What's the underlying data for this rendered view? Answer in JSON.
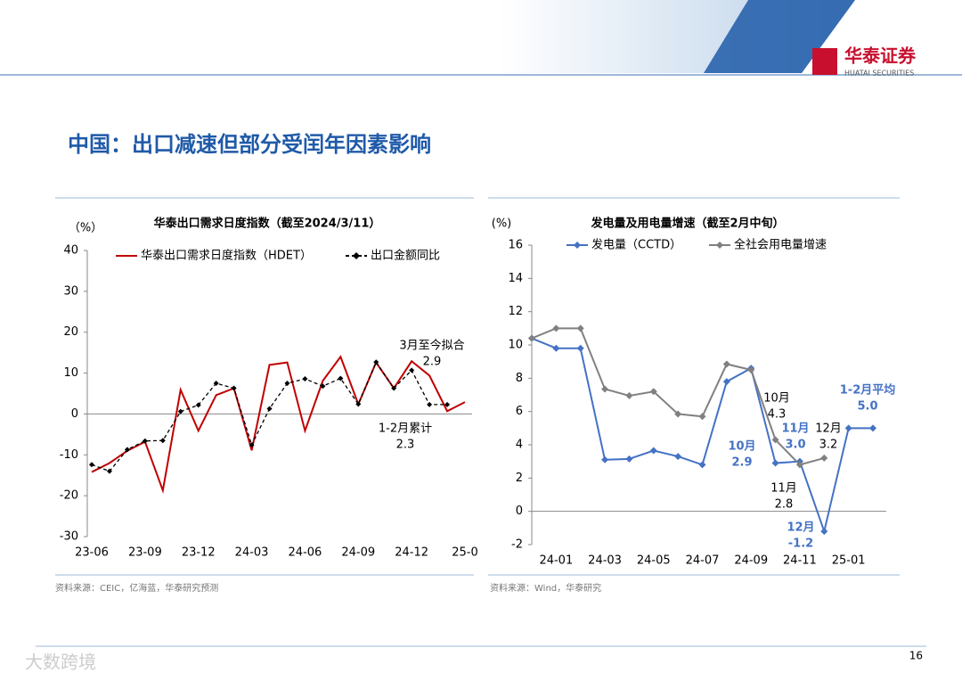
{
  "header": {
    "logo": "华泰证券",
    "logo_en": "HUATAI SECURITIES"
  },
  "title": "中国：出口减速但部分受闰年因素影响",
  "chart_data": [
    {
      "type": "line",
      "title": "华泰出口需求日度指数（截至2024/3/11）",
      "y_label": "（%）",
      "categories": [
        "23-06",
        null,
        null,
        "23-09",
        null,
        null,
        "23-12",
        null,
        null,
        "24-03",
        null,
        null,
        "24-06",
        null,
        null,
        "24-09",
        null,
        null,
        "24-12",
        null,
        null,
        "25-0"
      ],
      "series": [
        {
          "name": "华泰出口需求日度指数（HDET）",
          "color": "#c00000",
          "dash": false,
          "marker": "none",
          "values": [
            -14.2,
            -12,
            -9,
            -6.8,
            -18.7,
            5.9,
            -4.1,
            4.6,
            6.3,
            -8.9,
            12,
            12.6,
            -4.1,
            8.1,
            14,
            2.4,
            12.6,
            6.3,
            12.9,
            9.4,
            0.7,
            2.9
          ]
        },
        {
          "name": "出口金额同比",
          "color": "#000000",
          "dash": true,
          "marker": "diamond",
          "values": [
            -12.4,
            -14,
            -8.7,
            -6.6,
            -6.5,
            0.6,
            2.2,
            7.5,
            6.3,
            -7.6,
            1.3,
            7.5,
            8.6,
            6.8,
            8.7,
            2.4,
            12.7,
            6.3,
            10.7,
            2.3,
            2.3,
            null
          ]
        }
      ],
      "ylim": [
        -30,
        40
      ],
      "yticks": [
        -30,
        -20,
        -10,
        0,
        10,
        20,
        30,
        40
      ],
      "annotations": [
        {
          "lines": [
            "3月至今拟合",
            "2.9"
          ],
          "color": "#000000"
        },
        {
          "lines": [
            "1-2月累计",
            "2.3"
          ],
          "color": "#000000"
        }
      ],
      "source": "资料来源：CEIC，亿海蓝，华泰研究预测"
    },
    {
      "type": "line",
      "title": "发电量及用电量增速（截至2月中旬）",
      "y_label": "(%)",
      "categories": [
        null,
        "24-01",
        null,
        "24-03",
        null,
        "24-05",
        null,
        "24-07",
        null,
        "24-09",
        null,
        "24-11",
        null,
        "25-01",
        null
      ],
      "series": [
        {
          "name": "发电量（CCTD）",
          "color": "#4472c4",
          "dash": false,
          "marker": "diamond",
          "values": [
            10.4,
            9.8,
            9.8,
            3.1,
            3.15,
            3.65,
            3.3,
            2.8,
            7.8,
            8.6,
            2.9,
            3.0,
            -1.2,
            5.0,
            5.0
          ]
        },
        {
          "name": "全社会用电量增速",
          "color": "#808080",
          "dash": false,
          "marker": "diamond",
          "values": [
            10.4,
            11,
            11,
            7.35,
            6.95,
            7.2,
            5.85,
            5.7,
            8.85,
            8.5,
            4.3,
            2.8,
            3.2,
            null,
            null
          ]
        }
      ],
      "ylim": [
        -2,
        16
      ],
      "yticks": [
        -2,
        0,
        2,
        4,
        6,
        8,
        10,
        12,
        14,
        16
      ],
      "annotations": [
        {
          "lines": [
            "10月",
            "4.3"
          ],
          "color": "#000000"
        },
        {
          "lines": [
            "11月",
            "3.0"
          ],
          "color": "#4472c4"
        },
        {
          "lines": [
            "10月",
            "2.9"
          ],
          "color": "#4472c4"
        },
        {
          "lines": [
            "12月",
            "3.2"
          ],
          "color": "#000000"
        },
        {
          "lines": [
            "11月",
            "2.8"
          ],
          "color": "#000000"
        },
        {
          "lines": [
            "12月",
            "-1.2"
          ],
          "color": "#4472c4"
        },
        {
          "lines": [
            "1-2月平均",
            "5.0"
          ],
          "color": "#4472c4"
        }
      ],
      "source": "资料来源：Wind，华泰研究"
    }
  ],
  "watermark": "大数跨境",
  "page_number": "16"
}
